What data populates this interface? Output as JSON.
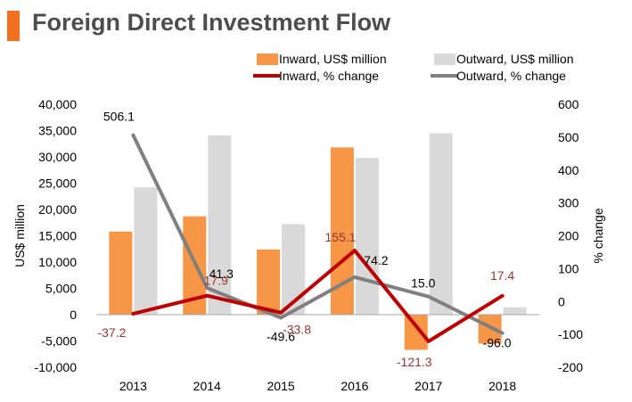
{
  "title": "Foreign Direct Investment Flow",
  "colors": {
    "accent": "#f37021",
    "inward_bar": "#f79646",
    "outward_bar": "#d9d9d9",
    "inward_line": "#c00000",
    "outward_line": "#808080",
    "text": "#000000",
    "inward_label": "#943634"
  },
  "chart_data": {
    "type": "bar",
    "categories": [
      "2013",
      "2014",
      "2015",
      "2016",
      "2017",
      "2018"
    ],
    "ylabel": "US$ million",
    "y2label": "% change",
    "ylim": [
      -10000,
      40000
    ],
    "y2lim": [
      -200,
      600
    ],
    "yticks": [
      "-10,000",
      "-5,000",
      "0",
      "5,000",
      "10,000",
      "15,000",
      "20,000",
      "25,000",
      "30,000",
      "35,000",
      "40,000"
    ],
    "y2ticks": [
      "-200",
      "-100",
      "0",
      "100",
      "200",
      "300",
      "400",
      "500",
      "600"
    ],
    "legend_position": "top",
    "series": [
      {
        "name": "Inward, US$ million",
        "kind": "bar",
        "axis": "left",
        "values": [
          15800,
          18700,
          12400,
          31800,
          -6700,
          -5500
        ]
      },
      {
        "name": "Outward, US$ million",
        "kind": "bar",
        "axis": "left",
        "values": [
          24200,
          34100,
          17200,
          29800,
          34500,
          1400
        ]
      },
      {
        "name": "Inward, % change",
        "kind": "line",
        "axis": "right",
        "values": [
          -37.2,
          17.9,
          -33.8,
          155.1,
          -121.3,
          17.4
        ],
        "labels": [
          "-37.2",
          "17.9",
          "-33.8",
          "155.1",
          "-121.3",
          "17.4"
        ]
      },
      {
        "name": "Outward, % change",
        "kind": "line",
        "axis": "right",
        "values": [
          506.1,
          41.3,
          -49.6,
          74.2,
          15.0,
          -96.0
        ],
        "labels": [
          "506.1",
          "41.3",
          "-49.6",
          "74.2",
          "15.0",
          "-96.0"
        ]
      }
    ]
  }
}
